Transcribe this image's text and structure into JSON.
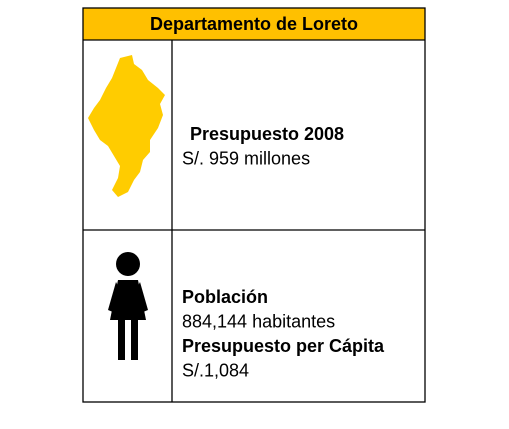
{
  "header": {
    "title": "Departamento de Loreto"
  },
  "rows": [
    {
      "lines": [
        {
          "text": "Presupuesto 2008",
          "bold": true
        },
        {
          "text": "S/. 959 millones",
          "bold": false
        }
      ]
    },
    {
      "lines": [
        {
          "text": "Población",
          "bold": true
        },
        {
          "text": "884,144 habitantes",
          "bold": false
        },
        {
          "text": "Presupuesto per Cápita",
          "bold": true
        },
        {
          "text": "S/.1,084",
          "bold": false
        }
      ]
    }
  ]
}
